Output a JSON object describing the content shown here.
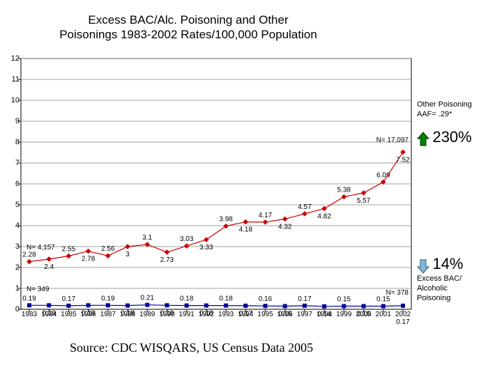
{
  "title_line1": "Excess BAC/Alc. Poisoning and Other",
  "title_line2": "Poisonings  1983-2002 Rates/100,000 Population",
  "source": "Source: CDC WISQARS, US Census Data 2005",
  "chart": {
    "type": "line",
    "background_color": "#ffffff",
    "grid_color": "#808080",
    "axis_color": "#000000",
    "tick_fontsize": 11,
    "datalabel_fontsize": 10,
    "ylim": [
      0,
      12
    ],
    "ytick_step": 1,
    "years": [
      1983,
      1984,
      1985,
      1986,
      1987,
      1988,
      1989,
      1990,
      1991,
      1992,
      1993,
      1994,
      1995,
      1996,
      1997,
      1998,
      1999,
      2000,
      2001,
      2002
    ],
    "series": {
      "other_poisoning": {
        "color": "#cc0000",
        "marker": "diamond",
        "marker_size": 5,
        "line_width": 1.2,
        "values": [
          2.28,
          2.4,
          2.55,
          2.78,
          2.56,
          3,
          3.1,
          2.73,
          3.03,
          3.33,
          3.98,
          4.18,
          4.17,
          4.32,
          4.57,
          4.82,
          5.38,
          5.57,
          6.09,
          7.52
        ]
      },
      "excess_bac": {
        "color": "#000099",
        "marker": "square",
        "marker_size": 5,
        "line_width": 1.2,
        "values": [
          0.19,
          0.19,
          0.17,
          0.19,
          0.19,
          0.18,
          0.21,
          0.19,
          0.18,
          0.18,
          0.18,
          0.17,
          0.16,
          0.15,
          0.17,
          0.14,
          0.15,
          0.15,
          0.15,
          0.17
        ],
        "last_label_below": true
      }
    },
    "annotations": {
      "n_other_start": "N= 4,157",
      "n_other_end": "N= 17,097",
      "n_bac_start": "N= 349",
      "n_bac_end": "N= 378"
    }
  },
  "side": {
    "other": {
      "caption_line1": "Other Poisoning",
      "caption_line2": "AAF= .29*",
      "pct": "230%",
      "arrow_fill": "#008000",
      "arrow_stroke": "#003300"
    },
    "bac": {
      "pct": "14%",
      "caption_line1": "Excess BAC/",
      "caption_line2": "Alcoholic",
      "caption_line3": "Poisoning",
      "arrow_fill": "#7fb8d4",
      "arrow_stroke": "#2a5a7a"
    }
  }
}
